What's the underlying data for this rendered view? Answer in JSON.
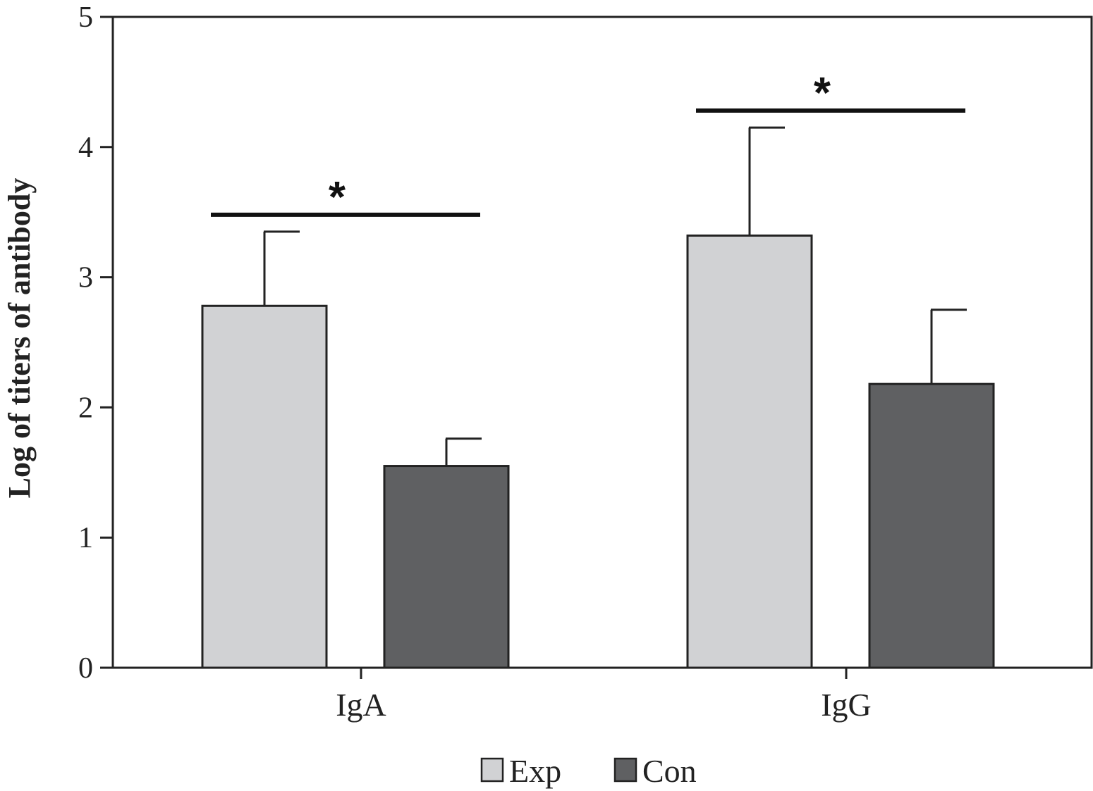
{
  "chart_data": {
    "type": "bar",
    "title": "",
    "xlabel": "",
    "ylabel": "Log of titers of antibody",
    "ylim": [
      0,
      5
    ],
    "yticks": [
      "0",
      "1",
      "2",
      "3",
      "4",
      "5"
    ],
    "categories": [
      "IgA",
      "IgG"
    ],
    "series": [
      {
        "name": "Exp",
        "color": "#d1d2d4",
        "values": [
          2.78,
          3.32
        ],
        "errors": [
          0.57,
          0.83
        ]
      },
      {
        "name": "Con",
        "color": "#5f6062",
        "values": [
          1.55,
          2.18
        ],
        "errors": [
          0.21,
          0.57
        ]
      }
    ],
    "significance": [
      {
        "category": "IgA",
        "label": "*",
        "level": 3.48
      },
      {
        "category": "IgG",
        "label": "*",
        "level": 4.28
      }
    ],
    "legend": [
      "Exp",
      "Con"
    ],
    "legend_position": "bottom-center",
    "grid": false
  }
}
